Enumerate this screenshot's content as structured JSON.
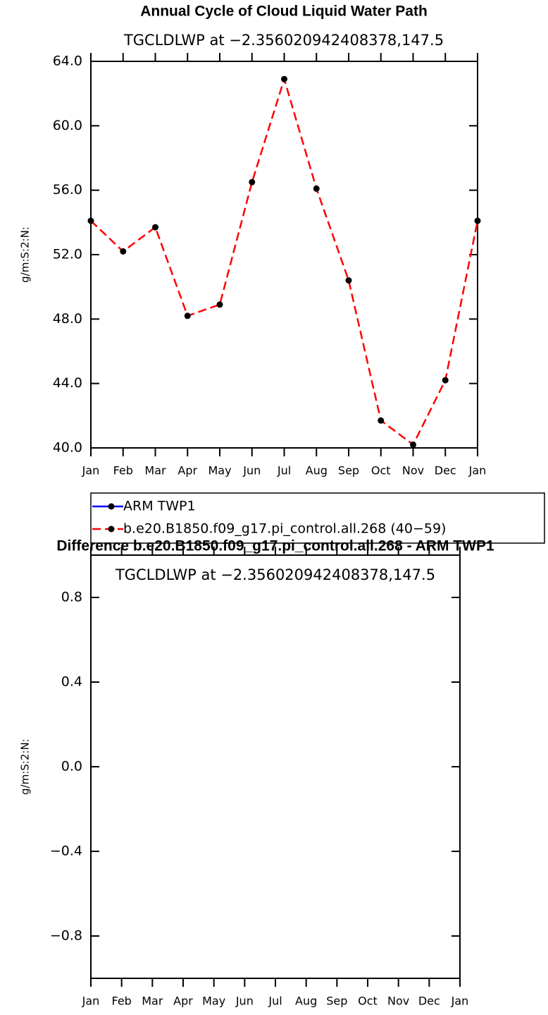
{
  "chart_data": [
    {
      "type": "line",
      "title": "Annual Cycle of Cloud Liquid Water Path",
      "subtitle": "TGCLDLWP at −2.356020942408378,147.5",
      "ylabel": "g/m:S:2:N:",
      "categories": [
        "Jan",
        "Feb",
        "Mar",
        "Apr",
        "May",
        "Jun",
        "Jul",
        "Aug",
        "Sep",
        "Oct",
        "Nov",
        "Dec",
        "Jan"
      ],
      "series": [
        {
          "name": "ARM TWP1",
          "color": "#0000ff",
          "linestyle": "solid",
          "values": [
            null,
            null,
            null,
            null,
            null,
            null,
            null,
            null,
            null,
            null,
            null,
            null,
            null
          ]
        },
        {
          "name": "b.e20.B1850.f09_g17.pi_control.all.268 (40−59)",
          "color": "#ff0000",
          "linestyle": "dashed",
          "values": [
            54.1,
            52.2,
            53.7,
            48.2,
            48.9,
            56.5,
            62.9,
            56.1,
            50.4,
            41.7,
            40.2,
            44.2,
            54.1
          ]
        }
      ],
      "marker_color": "#000000",
      "ylim": [
        40,
        64
      ],
      "yticks": [
        {
          "value": 40,
          "label": "40.0"
        },
        {
          "value": 44,
          "label": "44.0"
        },
        {
          "value": 48,
          "label": "48.0"
        },
        {
          "value": 52,
          "label": "52.0"
        },
        {
          "value": 56,
          "label": "56.0"
        },
        {
          "value": 60,
          "label": "60.0"
        },
        {
          "value": 64,
          "label": "64.0"
        }
      ]
    },
    {
      "type": "line",
      "title": "Difference b.e20.B1850.f09_g17.pi_control.all.268 - ARM TWP1",
      "subtitle": "TGCLDLWP at −2.356020942408378,147.5",
      "ylabel": "g/m:S:2:N:",
      "categories": [
        "Jan",
        "Feb",
        "Mar",
        "Apr",
        "May",
        "Jun",
        "Jul",
        "Aug",
        "Sep",
        "Oct",
        "Nov",
        "Dec",
        "Jan"
      ],
      "ylim": [
        -1,
        1
      ],
      "yticks": [
        {
          "value": -0.8,
          "label": "−0.8"
        },
        {
          "value": -0.4,
          "label": "−0.4"
        },
        {
          "value": 0,
          "label": "0.0"
        },
        {
          "value": 0.4,
          "label": "0.4"
        },
        {
          "value": 0.8,
          "label": "0.8"
        }
      ]
    }
  ]
}
